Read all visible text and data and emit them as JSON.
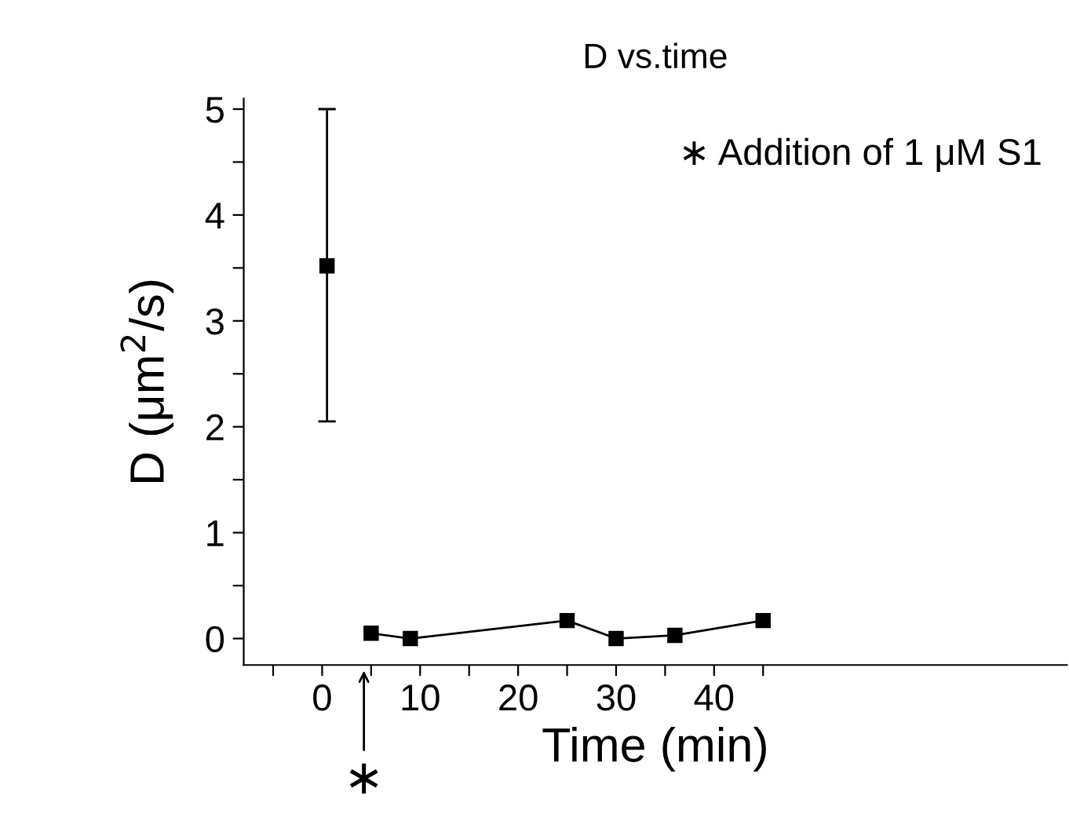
{
  "chart_data": {
    "type": "scatter",
    "title": "D vs.time",
    "xlabel": "Time (min)",
    "ylabel": "D (μm$^{2}$/s)",
    "series": [
      {
        "x": [
          0.5
        ],
        "values": [
          3.52
        ],
        "errors": [
          [
            2.05,
            5.0
          ]
        ],
        "color": "#000000",
        "marker": "square"
      },
      {
        "type": "line",
        "x": [
          5,
          9,
          25,
          30,
          36,
          45
        ],
        "values": [
          0.05,
          0.0,
          0.17,
          0.0,
          0.03,
          0.17
        ],
        "color": "#000000",
        "marker": "square",
        "line_style": "solid"
      }
    ],
    "annotations": [
      "∗ Addition of 1 μM S1",
      "∗"
    ],
    "xlim": [
      -8,
      76
    ],
    "ylim": [
      -0.25,
      5.1
    ],
    "xticks": [
      {
        "value": -5,
        "label": null
      },
      0,
      {
        "value": 5,
        "label": null
      },
      10,
      {
        "value": 15,
        "label": null
      },
      20,
      {
        "value": 25,
        "label": null
      },
      30,
      {
        "value": 35,
        "label": null
      },
      40,
      {
        "value": 45,
        "label": null
      }
    ],
    "yticks": [
      0,
      {
        "value": 0.5,
        "label": null
      },
      1,
      {
        "value": 1.5,
        "label": null
      },
      2,
      {
        "value": 2.5,
        "label": null
      },
      3,
      {
        "value": 3.5,
        "label": null
      },
      4,
      {
        "value": 4.5,
        "label": null
      },
      5
    ],
    "grid": false,
    "legend": false
  }
}
